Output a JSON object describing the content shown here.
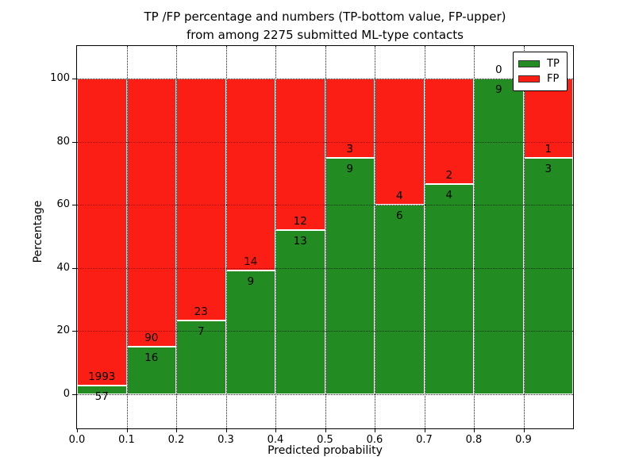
{
  "figure": {
    "title_line1": "TP /FP percentage and numbers (TP-bottom value, FP-upper)",
    "title_line2": "from among 2275 submitted ML-type contacts"
  },
  "chart_data": {
    "type": "bar",
    "stacked": true,
    "normalized_to_percent": true,
    "title": "TP /FP percentage and numbers (TP-bottom value, FP-upper)\nfrom among 2275 submitted ML-type contacts",
    "total_contacts": 2275,
    "xlabel": "Predicted probability",
    "ylabel": "Percentage",
    "bin_edges": [
      0.0,
      0.1,
      0.2,
      0.3,
      0.4,
      0.5,
      0.6,
      0.7,
      0.8,
      0.9,
      1.0
    ],
    "series": [
      {
        "name": "TP",
        "color": "#228b22",
        "counts": [
          57,
          16,
          7,
          9,
          13,
          9,
          6,
          4,
          9,
          3
        ]
      },
      {
        "name": "FP",
        "color": "#fa1e14",
        "counts": [
          1993,
          90,
          23,
          14,
          12,
          3,
          4,
          2,
          0,
          1
        ]
      }
    ],
    "tp_percent": [
      2.8,
      15.1,
      23.3,
      39.1,
      52.0,
      75.0,
      60.0,
      66.7,
      100.0,
      75.0
    ],
    "x_ticks": [
      "0.0",
      "0.1",
      "0.2",
      "0.3",
      "0.4",
      "0.5",
      "0.6",
      "0.7",
      "0.8",
      "0.9"
    ],
    "y_ticks": [
      "0",
      "20",
      "40",
      "60",
      "80",
      "100"
    ],
    "xlim": [
      0.0,
      1.0
    ],
    "ylim": [
      -10.8,
      110.3
    ],
    "grid": "dotted",
    "legend": {
      "position": "upper right",
      "entries": [
        {
          "label": "TP",
          "color": "#228b22"
        },
        {
          "label": "FP",
          "color": "#fa1e14"
        }
      ]
    }
  }
}
